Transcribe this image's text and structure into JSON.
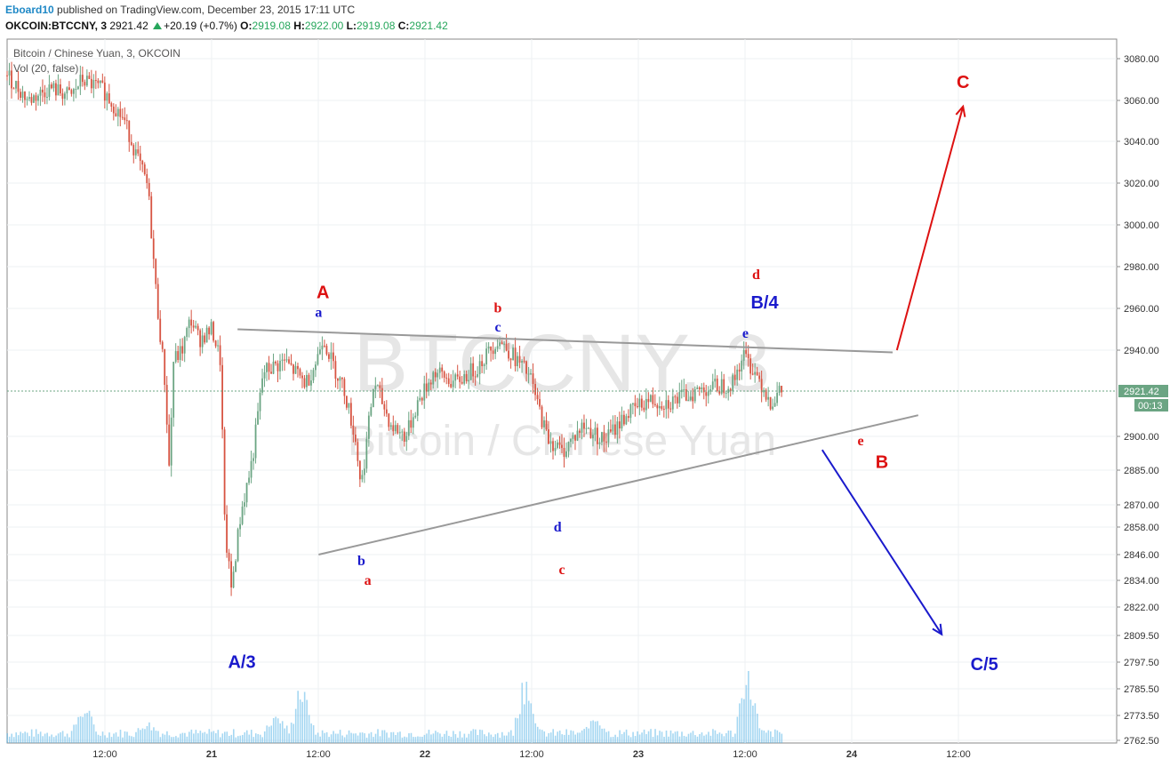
{
  "header": {
    "author": "Eboard10",
    "published": "published on TradingView.com, December 23, 2015 17:11 UTC",
    "symbol": "OKCOIN:BTCCNY, 3",
    "last": "2921.42",
    "change": "+20.19 (+0.7%)",
    "o_label": "O:",
    "o_value": "2919.08",
    "h_label": "H:",
    "h_value": "2922.00",
    "l_label": "L:",
    "l_value": "2919.08",
    "c_label": "C:",
    "c_value": "2921.42"
  },
  "legend": {
    "series": "Bitcoin / Chinese Yuan, 3, OKCOIN",
    "volume": "Vol (20, false)"
  },
  "watermark": {
    "symbol": "BTCCNY, 3",
    "name": "Bitcoin / Chinese Yuan"
  },
  "colors": {
    "up": "#6ba583",
    "down": "#d75442",
    "volume": "#5bb7e8",
    "last_price": "#6ba583",
    "red_label": "#dd1111",
    "blue_label": "#1a1acc"
  },
  "price_badge": {
    "value": "2921.42",
    "countdown": "00:13"
  },
  "chart_data": {
    "type": "candlestick",
    "title": "Bitcoin / Chinese Yuan, 3, OKCOIN",
    "x_tick_labels": [
      "12:00",
      "21",
      "12:00",
      "22",
      "12:00",
      "23",
      "12:00",
      "24",
      "12:00"
    ],
    "y_tick_labels": [
      "3080.00",
      "3060.00",
      "3040.00",
      "3020.00",
      "3000.00",
      "2980.00",
      "2960.00",
      "2940.00",
      "2921.42",
      "2900.00",
      "2885.00",
      "2870.00",
      "2858.00",
      "2846.00",
      "2834.00",
      "2822.00",
      "2809.50",
      "2797.50",
      "2785.50",
      "2773.50",
      "2762.50"
    ],
    "price_path": [
      [
        0,
        3072
      ],
      [
        0.1,
        3060
      ],
      [
        0.2,
        3066
      ],
      [
        0.3,
        3062
      ],
      [
        0.35,
        3070
      ],
      [
        0.45,
        3065
      ],
      [
        0.55,
        3050
      ],
      [
        0.6,
        3035
      ],
      [
        0.66,
        3018
      ],
      [
        0.7,
        2965
      ],
      [
        0.72,
        2945
      ],
      [
        0.74,
        2925
      ],
      [
        0.76,
        2885
      ],
      [
        0.78,
        2935
      ],
      [
        0.82,
        2940
      ],
      [
        0.86,
        2955
      ],
      [
        0.9,
        2945
      ],
      [
        0.96,
        2950
      ],
      [
        1.0,
        2935
      ],
      [
        1.02,
        2858
      ],
      [
        1.05,
        2830
      ],
      [
        1.1,
        2868
      ],
      [
        1.15,
        2890
      ],
      [
        1.2,
        2930
      ],
      [
        1.3,
        2935
      ],
      [
        1.4,
        2925
      ],
      [
        1.45,
        2935
      ],
      [
        1.48,
        2947
      ],
      [
        1.52,
        2935
      ],
      [
        1.58,
        2922
      ],
      [
        1.63,
        2900
      ],
      [
        1.66,
        2878
      ],
      [
        1.72,
        2926
      ],
      [
        1.8,
        2905
      ],
      [
        1.87,
        2900
      ],
      [
        1.92,
        2915
      ],
      [
        2.0,
        2930
      ],
      [
        2.1,
        2925
      ],
      [
        2.2,
        2932
      ],
      [
        2.3,
        2945
      ],
      [
        2.35,
        2940
      ],
      [
        2.45,
        2928
      ],
      [
        2.53,
        2900
      ],
      [
        2.6,
        2893
      ],
      [
        2.7,
        2905
      ],
      [
        2.8,
        2898
      ],
      [
        2.9,
        2910
      ],
      [
        3.0,
        2917
      ],
      [
        3.1,
        2916
      ],
      [
        3.25,
        2922
      ],
      [
        3.4,
        2925
      ],
      [
        3.45,
        2938
      ],
      [
        3.52,
        2928
      ],
      [
        3.58,
        2916
      ],
      [
        3.63,
        2921.42
      ]
    ],
    "volume_spikes": [
      [
        0.36,
        0.25
      ],
      [
        1.38,
        0.45
      ],
      [
        2.43,
        0.55
      ],
      [
        3.47,
        0.6
      ],
      [
        1.26,
        0.2
      ],
      [
        0.66,
        0.12
      ],
      [
        2.76,
        0.18
      ]
    ],
    "trendlines": [
      {
        "from": [
          1.08,
          2950
        ],
        "to": [
          4.15,
          2939
        ]
      },
      {
        "from": [
          1.46,
          2846
        ],
        "to": [
          4.27,
          2910
        ]
      }
    ],
    "arrows": [
      {
        "color": "red",
        "from": [
          4.17,
          2940
        ],
        "to": [
          4.48,
          3057
        ]
      },
      {
        "color": "blue",
        "from": [
          3.82,
          2894
        ],
        "to": [
          4.38,
          2810
        ]
      }
    ],
    "annotations": [
      {
        "text": "A",
        "color": "red",
        "x": 1.48,
        "y": 2965,
        "size": "large"
      },
      {
        "text": "a",
        "color": "blue",
        "x": 1.46,
        "y": 2956,
        "size": "small"
      },
      {
        "text": "b",
        "color": "red",
        "x": 2.3,
        "y": 2958,
        "size": "small"
      },
      {
        "text": "c",
        "color": "blue",
        "x": 2.3,
        "y": 2949,
        "size": "small"
      },
      {
        "text": "d",
        "color": "red",
        "x": 3.51,
        "y": 2974,
        "size": "small"
      },
      {
        "text": "B/4",
        "color": "blue",
        "x": 3.55,
        "y": 2960,
        "size": "large"
      },
      {
        "text": "e",
        "color": "blue",
        "x": 3.46,
        "y": 2946,
        "size": "small"
      },
      {
        "text": "e",
        "color": "red",
        "x": 4.0,
        "y": 2896,
        "size": "small"
      },
      {
        "text": "B",
        "color": "red",
        "x": 4.1,
        "y": 2886,
        "size": "large"
      },
      {
        "text": "C",
        "color": "red",
        "x": 4.48,
        "y": 3066,
        "size": "large"
      },
      {
        "text": "d",
        "color": "blue",
        "x": 2.58,
        "y": 2856,
        "size": "small"
      },
      {
        "text": "c",
        "color": "red",
        "x": 2.6,
        "y": 2837,
        "size": "small"
      },
      {
        "text": "b",
        "color": "blue",
        "x": 1.66,
        "y": 2841,
        "size": "small"
      },
      {
        "text": "a",
        "color": "red",
        "x": 1.69,
        "y": 2832,
        "size": "small"
      },
      {
        "text": "A/3",
        "color": "blue",
        "x": 1.1,
        "y": 2795,
        "size": "large"
      },
      {
        "text": "C/5",
        "color": "blue",
        "x": 4.58,
        "y": 2794,
        "size": "large"
      }
    ]
  }
}
